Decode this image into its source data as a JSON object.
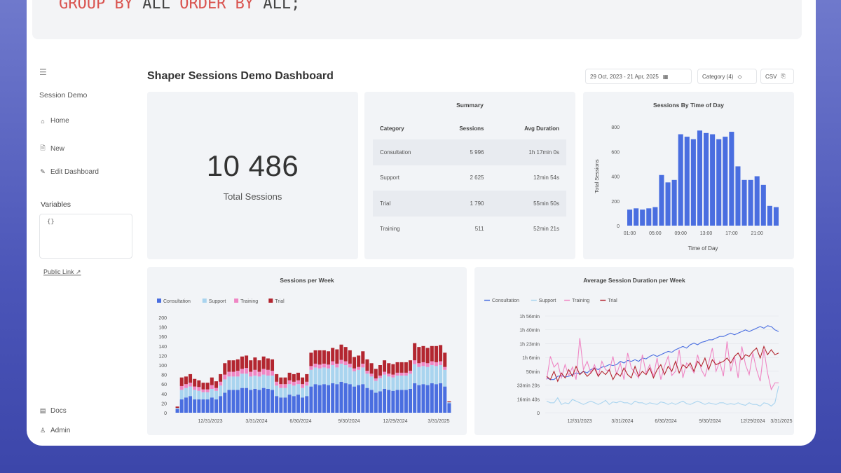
{
  "code": {
    "tokens": [
      {
        "text": "GROUP BY",
        "kw": true
      },
      {
        "text": " ALL ",
        "kw": false
      },
      {
        "text": "ORDER BY",
        "kw": true
      },
      {
        "text": " ALL;",
        "kw": false
      }
    ]
  },
  "sidebar": {
    "menu_icon": "☰",
    "title": "Session Demo",
    "items": [
      {
        "label": "Home",
        "icon": "home-icon",
        "glyph": "⌂"
      },
      {
        "label": "New",
        "icon": "new-doc-icon",
        "glyph": "🗎"
      },
      {
        "label": "Edit Dashboard",
        "icon": "pencil-icon",
        "glyph": "✎"
      }
    ],
    "variables_label": "Variables",
    "variables_value": "{}",
    "public_link": "Public Link",
    "bottom_items": [
      {
        "label": "Docs",
        "icon": "docs-icon",
        "glyph": "▤"
      },
      {
        "label": "Admin",
        "icon": "user-icon",
        "glyph": "♙"
      }
    ]
  },
  "header": {
    "title": "Shaper Sessions Demo Dashboard",
    "date_range": "29 Oct, 2023 - 21 Apr, 2025",
    "category_filter": "Category (4)",
    "csv_label": "CSV"
  },
  "total_card": {
    "value": "10 486",
    "label": "Total Sessions"
  },
  "summary": {
    "title": "Summary",
    "columns": [
      "Category",
      "Sessions",
      "Avg Duration"
    ],
    "rows": [
      [
        "Consultation",
        "5 996",
        "1h 17min 0s"
      ],
      [
        "Support",
        "2 625",
        "12min 54s"
      ],
      [
        "Trial",
        "1 790",
        "55min 50s"
      ],
      [
        "Training",
        "511",
        "52min 21s"
      ]
    ]
  },
  "colors": {
    "consultation": "#4a6ee0",
    "support": "#a9d4ef",
    "training": "#ef86c4",
    "trial": "#b32630"
  },
  "chart_data": [
    {
      "type": "bar",
      "title": "Sessions By Time of Day",
      "xlabel": "Time of Day",
      "ylabel": "Total Sessions",
      "categories": [
        "01:00",
        "02:00",
        "03:00",
        "04:00",
        "05:00",
        "06:00",
        "07:00",
        "08:00",
        "09:00",
        "10:00",
        "11:00",
        "12:00",
        "13:00",
        "14:00",
        "15:00",
        "16:00",
        "17:00",
        "18:00",
        "19:00",
        "20:00",
        "21:00",
        "22:00",
        "23:00",
        "24:00"
      ],
      "x_ticks": [
        "01:00",
        "05:00",
        "09:00",
        "13:00",
        "17:00",
        "21:00"
      ],
      "values": [
        130,
        140,
        130,
        140,
        150,
        410,
        350,
        370,
        740,
        720,
        700,
        770,
        750,
        740,
        700,
        720,
        760,
        480,
        370,
        370,
        400,
        330,
        160,
        150
      ],
      "ylim": [
        0,
        800
      ],
      "y_ticks": [
        0,
        200,
        400,
        600,
        800
      ]
    },
    {
      "type": "bar",
      "stacked": true,
      "title": "Sessions per Week",
      "legend": [
        "Consultation",
        "Support",
        "Training",
        "Trial"
      ],
      "x_ticks": [
        "12/31/2023",
        "3/31/2024",
        "6/30/2024",
        "9/30/2024",
        "12/29/2024",
        "3/31/2025"
      ],
      "ylim": [
        0,
        200
      ],
      "y_ticks": [
        0,
        20,
        40,
        60,
        80,
        100,
        120,
        140,
        160,
        180,
        200
      ],
      "series": [
        {
          "name": "Consultation",
          "values": [
            8,
            28,
            32,
            35,
            28,
            28,
            28,
            28,
            32,
            28,
            35,
            42,
            48,
            48,
            48,
            52,
            52,
            48,
            50,
            48,
            52,
            50,
            48,
            35,
            32,
            32,
            38,
            35,
            38,
            32,
            35,
            55,
            60,
            58,
            60,
            58,
            62,
            60,
            65,
            62,
            60,
            55,
            58,
            60,
            52,
            48,
            42,
            45,
            50,
            48,
            46,
            48,
            48,
            48,
            50,
            62,
            58,
            60,
            58,
            62,
            60,
            62,
            55,
            20
          ]
        },
        {
          "name": "Support",
          "values": [
            2,
            20,
            20,
            20,
            20,
            18,
            15,
            15,
            18,
            18,
            22,
            28,
            28,
            28,
            28,
            30,
            30,
            28,
            28,
            28,
            28,
            28,
            30,
            22,
            20,
            20,
            22,
            22,
            22,
            20,
            22,
            35,
            35,
            35,
            35,
            35,
            38,
            35,
            38,
            38,
            35,
            32,
            32,
            35,
            30,
            28,
            25,
            28,
            30,
            28,
            28,
            30,
            30,
            30,
            32,
            40,
            38,
            38,
            38,
            38,
            38,
            38,
            35,
            2
          ]
        },
        {
          "name": "Training",
          "values": [
            0,
            8,
            8,
            8,
            7,
            8,
            6,
            6,
            8,
            6,
            8,
            10,
            10,
            10,
            12,
            10,
            12,
            10,
            12,
            10,
            12,
            12,
            10,
            8,
            8,
            8,
            8,
            8,
            8,
            8,
            8,
            8,
            8,
            8,
            8,
            8,
            8,
            8,
            8,
            8,
            8,
            6,
            6,
            8,
            6,
            6,
            5,
            5,
            6,
            6,
            6,
            6,
            6,
            6,
            6,
            8,
            8,
            8,
            8,
            8,
            8,
            8,
            6,
            0
          ]
        },
        {
          "name": "Trial",
          "values": [
            3,
            18,
            16,
            18,
            16,
            14,
            14,
            14,
            16,
            14,
            16,
            24,
            24,
            24,
            24,
            26,
            26,
            24,
            26,
            24,
            26,
            24,
            24,
            16,
            14,
            14,
            16,
            16,
            16,
            14,
            16,
            28,
            28,
            30,
            28,
            28,
            28,
            30,
            32,
            30,
            28,
            24,
            24,
            26,
            24,
            22,
            20,
            22,
            24,
            22,
            22,
            22,
            22,
            22,
            22,
            36,
            34,
            34,
            32,
            32,
            34,
            34,
            30,
            2
          ]
        }
      ]
    },
    {
      "type": "line",
      "title": "Average Session Duration per Week",
      "legend": [
        "Consultation",
        "Support",
        "Training",
        "Trial"
      ],
      "x_ticks": [
        "12/31/2023",
        "3/31/2024",
        "6/30/2024",
        "9/30/2024",
        "12/29/2024",
        "3/31/2025"
      ],
      "y_ticks": [
        "0",
        "16min 40s",
        "33min 20s",
        "50min",
        "1h 6min",
        "1h 23min",
        "1h 40min",
        "1h 56min"
      ],
      "ylim_minutes": [
        0,
        116.67
      ],
      "series": [
        {
          "name": "Consultation",
          "values": [
            42,
            40,
            40,
            44,
            45,
            43,
            44,
            46,
            48,
            47,
            50,
            48,
            52,
            54,
            52,
            55,
            56,
            58,
            57,
            58,
            62,
            60,
            63,
            62,
            64,
            62,
            66,
            65,
            68,
            70,
            68,
            70,
            72,
            74,
            73,
            76,
            78,
            80,
            78,
            82,
            84,
            82,
            85,
            86,
            88,
            88,
            90,
            92,
            92,
            94,
            96,
            94,
            96,
            98,
            100,
            98,
            100,
            102,
            104,
            102,
            105,
            104,
            100,
            98
          ]
        },
        {
          "name": "Support",
          "values": [
            14,
            12,
            12,
            18,
            10,
            12,
            11,
            16,
            14,
            12,
            10,
            12,
            14,
            12,
            10,
            12,
            15,
            10,
            13,
            12,
            14,
            12,
            12,
            10,
            14,
            12,
            12,
            10,
            12,
            11,
            10,
            13,
            12,
            10,
            12,
            10,
            12,
            14,
            11,
            10,
            12,
            14,
            12,
            10,
            12,
            11,
            10,
            12,
            12,
            10,
            11,
            10,
            12,
            10,
            9,
            12,
            10,
            10,
            8,
            12,
            11,
            8,
            12,
            32
          ]
        },
        {
          "name": "Training",
          "values": [
            40,
            68,
            55,
            60,
            42,
            58,
            45,
            55,
            40,
            90,
            52,
            62,
            48,
            58,
            44,
            62,
            52,
            50,
            68,
            46,
            60,
            40,
            72,
            54,
            48,
            42,
            70,
            48,
            58,
            44,
            66,
            40,
            56,
            68,
            45,
            50,
            76,
            42,
            60,
            56,
            48,
            70,
            52,
            44,
            60,
            78,
            50,
            62,
            44,
            86,
            50,
            68,
            42,
            80,
            58,
            46,
            72,
            52,
            38,
            76,
            48,
            28,
            36,
            36
          ]
        },
        {
          "name": "Trial",
          "values": [
            44,
            40,
            50,
            38,
            48,
            42,
            52,
            44,
            56,
            46,
            50,
            44,
            48,
            54,
            44,
            50,
            46,
            52,
            40,
            48,
            44,
            54,
            46,
            42,
            56,
            44,
            50,
            46,
            54,
            42,
            52,
            58,
            46,
            56,
            50,
            62,
            48,
            58,
            54,
            60,
            50,
            62,
            56,
            66,
            52,
            64,
            58,
            60,
            62,
            66,
            60,
            68,
            72,
            64,
            70,
            68,
            74,
            78,
            66,
            80,
            70,
            76,
            70,
            72
          ]
        }
      ]
    }
  ]
}
